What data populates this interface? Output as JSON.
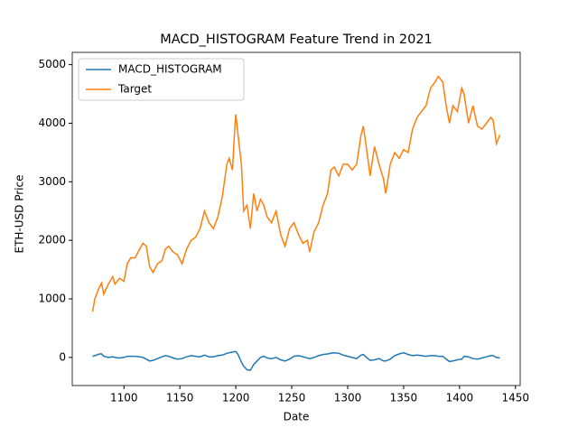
{
  "chart_data": {
    "type": "line",
    "title": "MACD_HISTOGRAM Feature Trend in 2021",
    "x_label": "Date",
    "y_label": "ETH-USD Price",
    "x": [
      1072,
      1074,
      1078,
      1080,
      1082,
      1086,
      1090,
      1092,
      1096,
      1100,
      1103,
      1106,
      1110,
      1114,
      1117,
      1120,
      1123,
      1126,
      1130,
      1134,
      1137,
      1140,
      1144,
      1148,
      1152,
      1156,
      1160,
      1164,
      1168,
      1172,
      1176,
      1180,
      1184,
      1188,
      1192,
      1194,
      1197,
      1199,
      1200,
      1202,
      1205,
      1207,
      1210,
      1213,
      1216,
      1219,
      1222,
      1225,
      1228,
      1232,
      1236,
      1240,
      1244,
      1248,
      1252,
      1256,
      1260,
      1264,
      1266,
      1270,
      1274,
      1278,
      1282,
      1285,
      1288,
      1292,
      1296,
      1300,
      1304,
      1308,
      1312,
      1314,
      1318,
      1320,
      1324,
      1328,
      1332,
      1334,
      1338,
      1342,
      1346,
      1350,
      1354,
      1358,
      1362,
      1366,
      1370,
      1374,
      1378,
      1381,
      1385,
      1388,
      1391,
      1394,
      1398,
      1402,
      1404,
      1408,
      1412,
      1416,
      1420,
      1424,
      1428,
      1430,
      1433,
      1436
    ],
    "series": [
      {
        "name": "MACD_HISTOGRAM",
        "color": "#1f77b4",
        "values": [
          20,
          30,
          60,
          60,
          20,
          0,
          10,
          0,
          -10,
          0,
          20,
          20,
          20,
          10,
          0,
          -30,
          -60,
          -50,
          -20,
          10,
          30,
          20,
          -10,
          -30,
          -20,
          10,
          30,
          20,
          10,
          40,
          10,
          10,
          30,
          40,
          70,
          80,
          90,
          100,
          100,
          50,
          -80,
          -150,
          -210,
          -220,
          -120,
          -60,
          0,
          20,
          -10,
          -20,
          0,
          -40,
          -60,
          -30,
          20,
          30,
          10,
          -10,
          -20,
          0,
          30,
          50,
          60,
          70,
          80,
          70,
          40,
          20,
          0,
          -20,
          40,
          50,
          -20,
          -50,
          -40,
          -20,
          -60,
          -60,
          -30,
          30,
          60,
          80,
          50,
          30,
          40,
          30,
          20,
          30,
          30,
          20,
          20,
          -30,
          -70,
          -60,
          -40,
          -30,
          20,
          10,
          -20,
          -30,
          -10,
          10,
          30,
          30,
          0,
          -10
        ]
      },
      {
        "name": "Target",
        "color": "#ff7f0e",
        "values": [
          780,
          1000,
          1200,
          1270,
          1080,
          1250,
          1380,
          1250,
          1350,
          1300,
          1600,
          1700,
          1700,
          1850,
          1950,
          1900,
          1550,
          1450,
          1600,
          1650,
          1850,
          1900,
          1800,
          1750,
          1600,
          1850,
          2000,
          2050,
          2200,
          2500,
          2300,
          2200,
          2400,
          2750,
          3300,
          3400,
          3200,
          3900,
          4150,
          3800,
          3300,
          2500,
          2600,
          2200,
          2800,
          2500,
          2700,
          2600,
          2400,
          2300,
          2500,
          2100,
          1900,
          2200,
          2300,
          2100,
          1950,
          2000,
          1800,
          2150,
          2300,
          2600,
          2800,
          3200,
          3250,
          3100,
          3300,
          3300,
          3200,
          3300,
          3800,
          3950,
          3400,
          3100,
          3600,
          3300,
          3050,
          2800,
          3300,
          3500,
          3400,
          3550,
          3500,
          3900,
          4100,
          4200,
          4300,
          4600,
          4700,
          4800,
          4700,
          4300,
          4000,
          4300,
          4200,
          4600,
          4500,
          4000,
          4300,
          3950,
          3900,
          4000,
          4100,
          4050,
          3650,
          3800
        ]
      }
    ],
    "xlim": [
      1053.8,
      1454.2
    ],
    "ylim": [
      -480,
      5210
    ],
    "xticks": [
      1100,
      1150,
      1200,
      1250,
      1300,
      1350,
      1400,
      1450
    ],
    "yticks": [
      0,
      1000,
      2000,
      3000,
      4000,
      5000
    ],
    "legend": "upper left"
  }
}
